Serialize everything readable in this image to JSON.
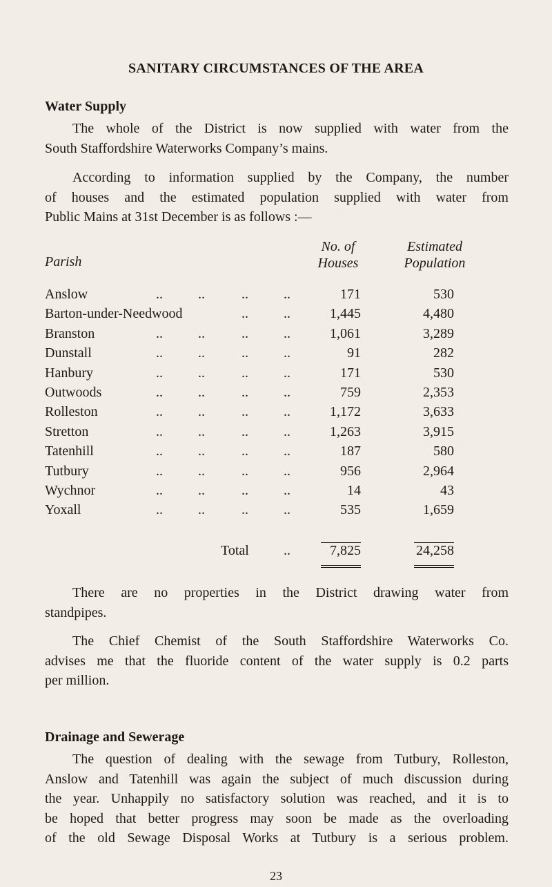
{
  "title": "SANITARY CIRCUMSTANCES OF THE AREA",
  "water_supply": {
    "heading": "Water Supply",
    "para1": [
      "The whole of the District is now supplied with water from the",
      "South Staffordshire Waterworks Company’s mains."
    ],
    "para2": [
      "According to information supplied by the Company, the number",
      "of houses and the estimated population supplied with water from",
      "Public Mains at 31st December is as follows :—"
    ],
    "table": {
      "headers": {
        "parish": "Parish",
        "houses_1": "No. of",
        "houses_2": "Houses",
        "pop_1": "Estimated",
        "pop_2": "Population"
      },
      "dots": "..",
      "rows": [
        {
          "parish": "Anslow",
          "houses": "171",
          "population": "530"
        },
        {
          "parish": "Barton-under-Needwood",
          "houses": "1,445",
          "population": "4,480"
        },
        {
          "parish": "Branston",
          "houses": "1,061",
          "population": "3,289"
        },
        {
          "parish": "Dunstall",
          "houses": "91",
          "population": "282"
        },
        {
          "parish": "Hanbury",
          "houses": "171",
          "population": "530"
        },
        {
          "parish": "Outwoods",
          "houses": "759",
          "population": "2,353"
        },
        {
          "parish": "Rolleston",
          "houses": "1,172",
          "population": "3,633"
        },
        {
          "parish": "Stretton",
          "houses": "1,263",
          "population": "3,915"
        },
        {
          "parish": "Tatenhill",
          "houses": "187",
          "population": "580"
        },
        {
          "parish": "Tutbury",
          "houses": "956",
          "population": "2,964"
        },
        {
          "parish": "Wychnor",
          "houses": "14",
          "population": "43"
        },
        {
          "parish": "Yoxall",
          "houses": "535",
          "population": "1,659"
        }
      ],
      "total": {
        "label": "Total",
        "houses": "7,825",
        "population": "24,258"
      }
    },
    "para3": [
      "There are no properties in the District drawing water from",
      "standpipes."
    ],
    "para4": [
      "The Chief Chemist of the South Staffordshire Waterworks Co.",
      "advises me that the fluoride content of the water supply is 0.2 parts",
      "per million."
    ]
  },
  "drainage": {
    "heading": "Drainage and Sewerage",
    "para1": [
      "The question of dealing with the sewage from Tutbury, Rolleston,",
      "Anslow and Tatenhill was again the subject of much discussion during",
      "the year. Unhappily no satisfactory solution was reached, and it is to",
      "be hoped that better progress may soon be made as the overloading",
      "of the old Sewage Disposal Works at Tutbury is a serious problem."
    ]
  },
  "page_number": "23"
}
